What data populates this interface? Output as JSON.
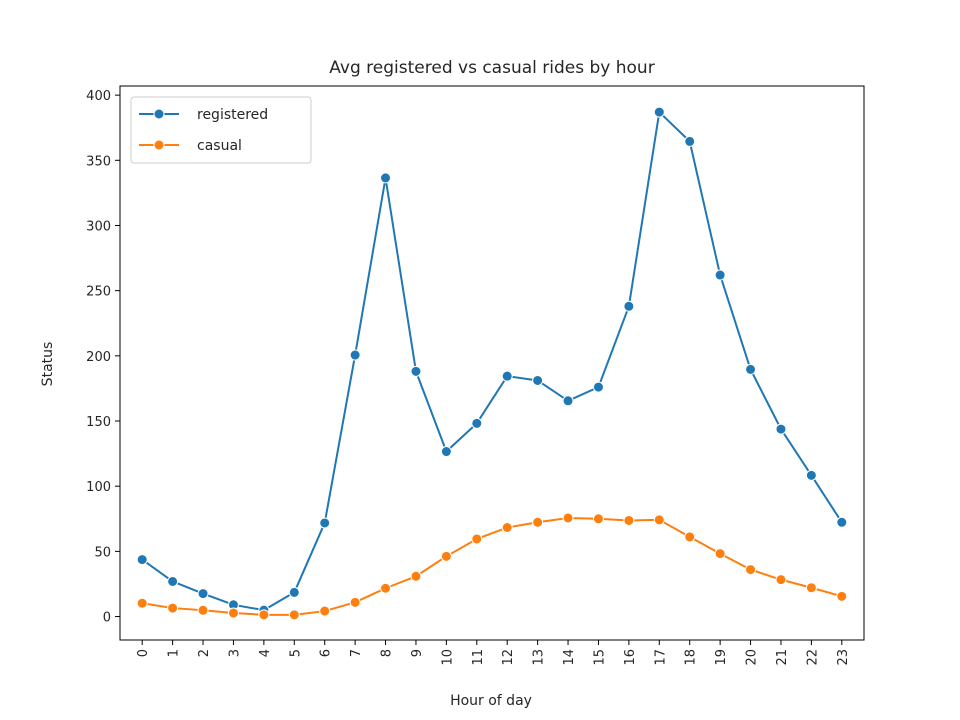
{
  "chart_data": {
    "type": "line",
    "title": "Avg registered vs casual rides by hour",
    "xlabel": "Hour of day",
    "ylabel": "Status",
    "x": [
      "0",
      "1",
      "2",
      "3",
      "4",
      "5",
      "6",
      "7",
      "8",
      "9",
      "10",
      "11",
      "12",
      "13",
      "14",
      "15",
      "16",
      "17",
      "18",
      "19",
      "20",
      "21",
      "22",
      "23"
    ],
    "ylim": [
      -18,
      407
    ],
    "yticks": [
      "0",
      "50",
      "100",
      "150",
      "200",
      "250",
      "300",
      "350",
      "400"
    ],
    "grid": false,
    "legend_position": "top-left",
    "series": [
      {
        "name": "registered",
        "color": "#1f77b4",
        "marker": "circle",
        "values": [
          43.7,
          26.9,
          17.6,
          9.0,
          4.9,
          18.5,
          71.8,
          200.6,
          336.5,
          188.1,
          126.6,
          148.2,
          184.4,
          181.1,
          165.5,
          176.0,
          238.0,
          387.0,
          364.5,
          262.0,
          189.6,
          143.8,
          108.3,
          72.3
        ]
      },
      {
        "name": "casual",
        "color": "#ff7f0e",
        "marker": "circle",
        "values": [
          10.2,
          6.5,
          4.8,
          2.7,
          1.3,
          1.3,
          4.2,
          10.9,
          21.7,
          30.9,
          46.2,
          59.5,
          68.3,
          72.3,
          75.6,
          75.0,
          73.7,
          74.2,
          61.1,
          48.3,
          36.0,
          28.3,
          22.1,
          15.5
        ]
      }
    ]
  }
}
